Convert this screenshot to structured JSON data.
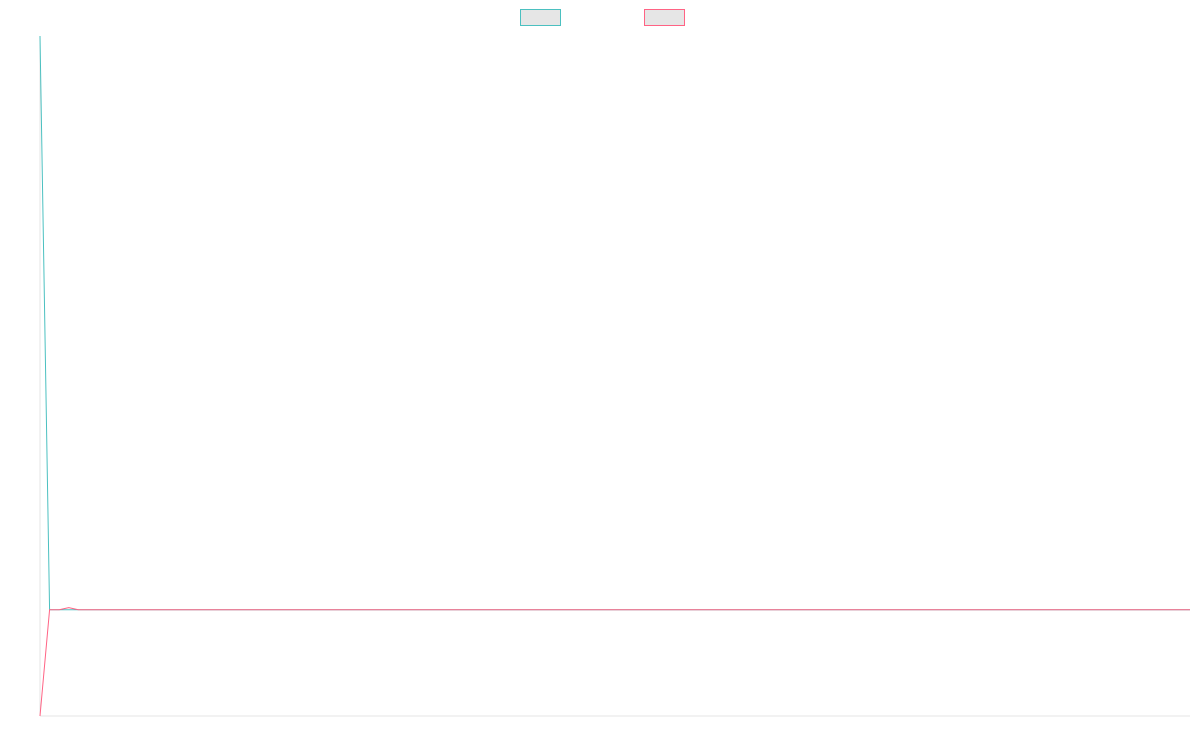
{
  "chart_data": {
    "type": "line",
    "title": "",
    "xlabel": "",
    "ylabel": "",
    "legend_position": "top-center",
    "grid": false,
    "x": [
      0,
      1,
      2,
      3,
      4,
      120
    ],
    "xlim": [
      0,
      120
    ],
    "ylim": [
      -1,
      5.4
    ],
    "series": [
      {
        "name": "",
        "color": "#4bc0c0",
        "fill": "#e6e6e6",
        "values": [
          5.4,
          0,
          0,
          0,
          0,
          0
        ]
      },
      {
        "name": "",
        "color": "#ff6384",
        "fill": "#e6e6e6",
        "values": [
          -1,
          0,
          0,
          0.02,
          0,
          0
        ]
      }
    ]
  }
}
